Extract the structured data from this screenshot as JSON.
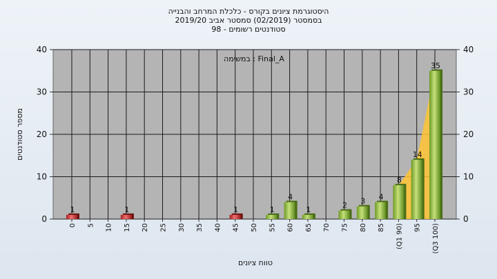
{
  "chart_data": {
    "type": "bar",
    "title_lines": [
      "היסטוגרמת ציונים בקורס - כלכלת המרחב והבנייה",
      "בסמסטר  (02/2019)  סמסטר אביב 2019/20",
      "סטודנטים רשומים - 98"
    ],
    "annotation": "במשימה : Final_A",
    "xlabel": "טווח ציונים",
    "ylabel": "מספר סטודנטים",
    "ylim": [
      0,
      40
    ],
    "yticks": [
      0,
      10,
      20,
      30,
      40
    ],
    "grid": true,
    "categories": [
      "0",
      "5",
      "10",
      "15",
      "20",
      "25",
      "30",
      "35",
      "40",
      "45",
      "50",
      "55",
      "60",
      "65",
      "70",
      "75",
      "80",
      "85",
      "(Q1 90)",
      "95",
      "(Q3 100)"
    ],
    "values": [
      1,
      0,
      0,
      1,
      0,
      0,
      0,
      0,
      0,
      1,
      0,
      1,
      4,
      1,
      0,
      2,
      3,
      4,
      8,
      14,
      35
    ],
    "data_labels": [
      "1",
      "",
      "",
      "1",
      "",
      "",
      "",
      "",
      "",
      "1",
      "",
      "1",
      "4",
      "1",
      "",
      "2",
      "3",
      "4",
      "8",
      "14",
      "35"
    ],
    "bar_colors": [
      "#e03a3a",
      "",
      "",
      "#e03a3a",
      "",
      "",
      "",
      "",
      "",
      "#e03a3a",
      "",
      "#8fbf3f",
      "#8fbf3f",
      "#8fbf3f",
      "",
      "#8fbf3f",
      "#8fbf3f",
      "#8fbf3f",
      "#8fbf3f",
      "#8fbf3f",
      "#8fbf3f"
    ],
    "highlight_area": {
      "color": "#ffc433",
      "from_category": "(Q1 90)",
      "to_category": "(Q3 100)"
    },
    "colors": {
      "plot_background": "#b4b4b4",
      "grid": "#1a1a1a",
      "fail_bar": "#e03a3a",
      "pass_bar": "#8fbf3f"
    }
  }
}
